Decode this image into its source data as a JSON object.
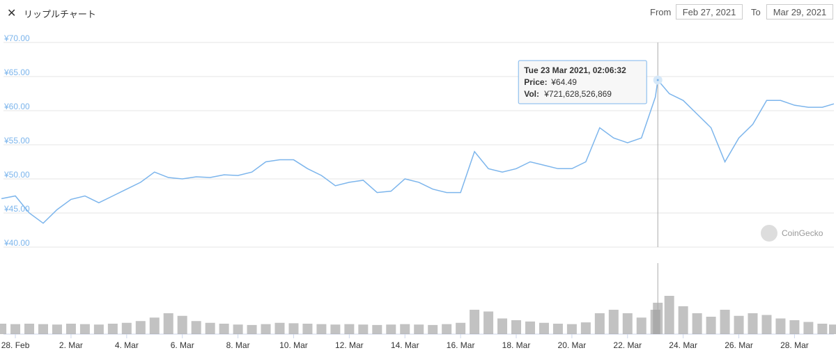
{
  "header": {
    "title": "リップルチャート",
    "from_label": "From",
    "from": "Feb 27, 2021",
    "to_label": "To",
    "to": "Mar 29, 2021"
  },
  "watermark": "CoinGecko",
  "chart_data": {
    "type": "line",
    "x": [
      "2021-02-27T12:00",
      "2021-02-28T00:00",
      "2021-02-28T12:00",
      "2021-03-01T00:00",
      "2021-03-01T12:00",
      "2021-03-02T00:00",
      "2021-03-02T12:00",
      "2021-03-03T00:00",
      "2021-03-03T12:00",
      "2021-03-04T00:00",
      "2021-03-04T12:00",
      "2021-03-05T00:00",
      "2021-03-05T12:00",
      "2021-03-06T00:00",
      "2021-03-06T12:00",
      "2021-03-07T00:00",
      "2021-03-07T12:00",
      "2021-03-08T00:00",
      "2021-03-08T12:00",
      "2021-03-09T00:00",
      "2021-03-09T12:00",
      "2021-03-10T00:00",
      "2021-03-10T12:00",
      "2021-03-11T00:00",
      "2021-03-11T12:00",
      "2021-03-12T00:00",
      "2021-03-12T12:00",
      "2021-03-13T00:00",
      "2021-03-13T12:00",
      "2021-03-14T00:00",
      "2021-03-14T12:00",
      "2021-03-15T00:00",
      "2021-03-15T12:00",
      "2021-03-16T00:00",
      "2021-03-16T12:00",
      "2021-03-17T00:00",
      "2021-03-17T12:00",
      "2021-03-18T00:00",
      "2021-03-18T12:00",
      "2021-03-19T00:00",
      "2021-03-19T12:00",
      "2021-03-20T00:00",
      "2021-03-20T12:00",
      "2021-03-21T00:00",
      "2021-03-21T12:00",
      "2021-03-22T00:00",
      "2021-03-22T12:00",
      "2021-03-23T00:00",
      "2021-03-23T02:06:32",
      "2021-03-23T12:00",
      "2021-03-24T00:00",
      "2021-03-24T12:00",
      "2021-03-25T00:00",
      "2021-03-25T12:00",
      "2021-03-26T00:00",
      "2021-03-26T12:00",
      "2021-03-27T00:00",
      "2021-03-27T12:00",
      "2021-03-28T00:00",
      "2021-03-28T12:00",
      "2021-03-29T00:00",
      "2021-03-29T10:00"
    ],
    "series": [
      {
        "name": "Price",
        "color": "#7cb5ec",
        "values": [
          47.1,
          47.5,
          45,
          43.5,
          45.5,
          47,
          47.5,
          46.5,
          47.5,
          48.5,
          49.5,
          51,
          50.2,
          50,
          50.3,
          50.2,
          50.6,
          50.5,
          51,
          52.5,
          52.8,
          52.8,
          51.5,
          50.5,
          49,
          49.5,
          49.8,
          48,
          48.2,
          50,
          49.5,
          48.5,
          48,
          48,
          54,
          51.5,
          51,
          51.5,
          52.5,
          52,
          51.5,
          51.5,
          52.5,
          57.5,
          56,
          55.3,
          56,
          62,
          64.49,
          62.5,
          61.5,
          59.5,
          57.5,
          52.5,
          56,
          58,
          61.5,
          61.5,
          60.8,
          60.5,
          60.5,
          61
        ]
      },
      {
        "name": "Vol",
        "color": "#999999",
        "values": [
          240000000000,
          230000000000,
          240000000000,
          230000000000,
          220000000000,
          240000000000,
          230000000000,
          220000000000,
          240000000000,
          260000000000,
          300000000000,
          380000000000,
          480000000000,
          420000000000,
          300000000000,
          260000000000,
          240000000000,
          220000000000,
          210000000000,
          230000000000,
          260000000000,
          250000000000,
          240000000000,
          230000000000,
          220000000000,
          230000000000,
          220000000000,
          210000000000,
          220000000000,
          230000000000,
          220000000000,
          210000000000,
          230000000000,
          260000000000,
          560000000000,
          520000000000,
          360000000000,
          320000000000,
          290000000000,
          260000000000,
          240000000000,
          230000000000,
          270000000000,
          480000000000,
          560000000000,
          480000000000,
          380000000000,
          560000000000,
          721628526869,
          880000000000,
          640000000000,
          480000000000,
          400000000000,
          560000000000,
          420000000000,
          480000000000,
          440000000000,
          360000000000,
          320000000000,
          280000000000,
          240000000000,
          220000000000
        ]
      }
    ],
    "xlim": [
      "2021-02-27T13:45",
      "2021-03-29T10:00"
    ],
    "xticks": [
      {
        "value": "2021-02-28",
        "label": "28. Feb"
      },
      {
        "value": "2021-03-02",
        "label": "2. Mar"
      },
      {
        "value": "2021-03-04",
        "label": "4. Mar"
      },
      {
        "value": "2021-03-06",
        "label": "6. Mar"
      },
      {
        "value": "2021-03-08",
        "label": "8. Mar"
      },
      {
        "value": "2021-03-10",
        "label": "10. Mar"
      },
      {
        "value": "2021-03-12",
        "label": "12. Mar"
      },
      {
        "value": "2021-03-14",
        "label": "14. Mar"
      },
      {
        "value": "2021-03-16",
        "label": "16. Mar"
      },
      {
        "value": "2021-03-18",
        "label": "18. Mar"
      },
      {
        "value": "2021-03-20",
        "label": "20. Mar"
      },
      {
        "value": "2021-03-22",
        "label": "22. Mar"
      },
      {
        "value": "2021-03-24",
        "label": "24. Mar"
      },
      {
        "value": "2021-03-26",
        "label": "26. Mar"
      },
      {
        "value": "2021-03-28",
        "label": "28. Mar"
      }
    ],
    "ylim": [
      40,
      70
    ],
    "yticks": [
      {
        "value": 40,
        "label": "¥40.00"
      },
      {
        "value": 45,
        "label": "¥45.00"
      },
      {
        "value": 50,
        "label": "¥50.00"
      },
      {
        "value": 55,
        "label": "¥55.00"
      },
      {
        "value": 60,
        "label": "¥60.00"
      },
      {
        "value": 65,
        "label": "¥65.00"
      },
      {
        "value": 70,
        "label": "¥70.00"
      }
    ],
    "vol_ylim": [
      0,
      1200000000000
    ],
    "grid": true,
    "tooltip": {
      "index": 48,
      "time": "Tue 23 Mar 2021, 02:06:32",
      "price_label": "Price:",
      "price": "¥64.49",
      "vol_label": "Vol:",
      "vol": "¥721,628,526,869"
    }
  }
}
